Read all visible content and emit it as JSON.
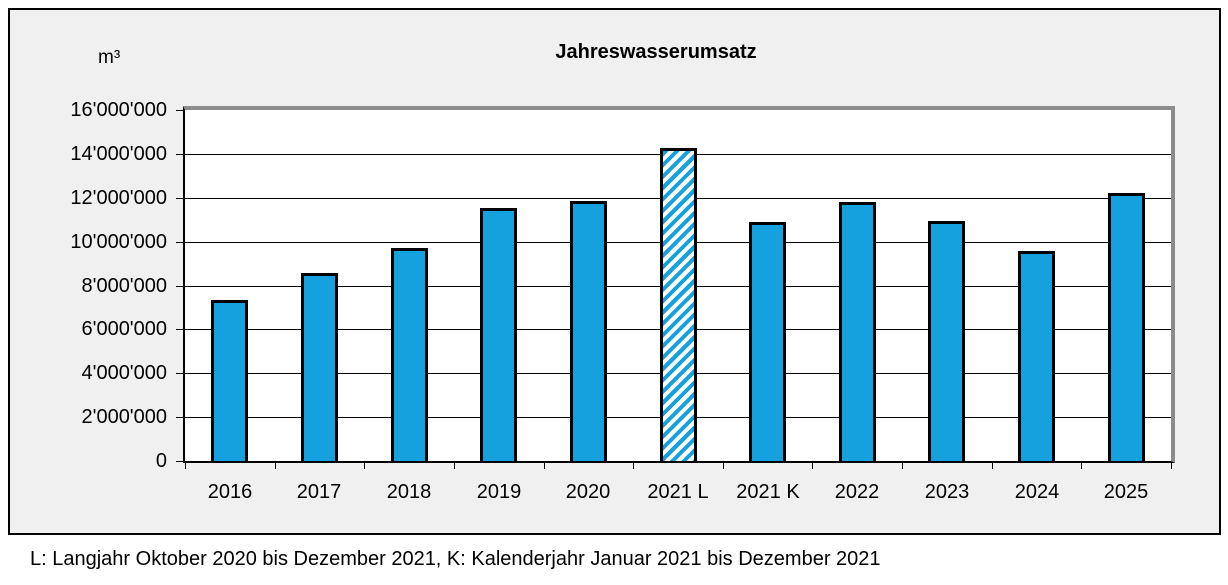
{
  "chart_data": {
    "type": "bar",
    "title": "Jahreswasserumsatz",
    "unit_label": "m³",
    "categories": [
      "2016",
      "2017",
      "2018",
      "2019",
      "2020",
      "2021 L",
      "2021 K",
      "2022",
      "2023",
      "2024",
      "2025"
    ],
    "values": [
      7350000,
      8550000,
      9700000,
      11550000,
      11850000,
      14250000,
      10900000,
      11800000,
      10950000,
      9550000,
      12200000
    ],
    "hatched_category": "2021 L",
    "ylim": [
      0,
      16000000
    ],
    "ytick_step": 2000000,
    "ytick_labels_top_down": [
      "16'000'000",
      "14'000'000",
      "12'000'000",
      "10'000'000",
      "8'000'000",
      "6'000'000",
      "4'000'000",
      "2'000'000",
      "0"
    ],
    "grid": true,
    "legend": "none",
    "bar_color": "#14a1dd",
    "bar_outline_color": "#000000",
    "plot_border_color": "#8c8c8c",
    "chart_background_color": "#f0f0f0"
  },
  "footnote": "L: Langjahr Oktober 2020 bis Dezember 2021, K: Kalenderjahr Januar 2021 bis Dezember 2021"
}
